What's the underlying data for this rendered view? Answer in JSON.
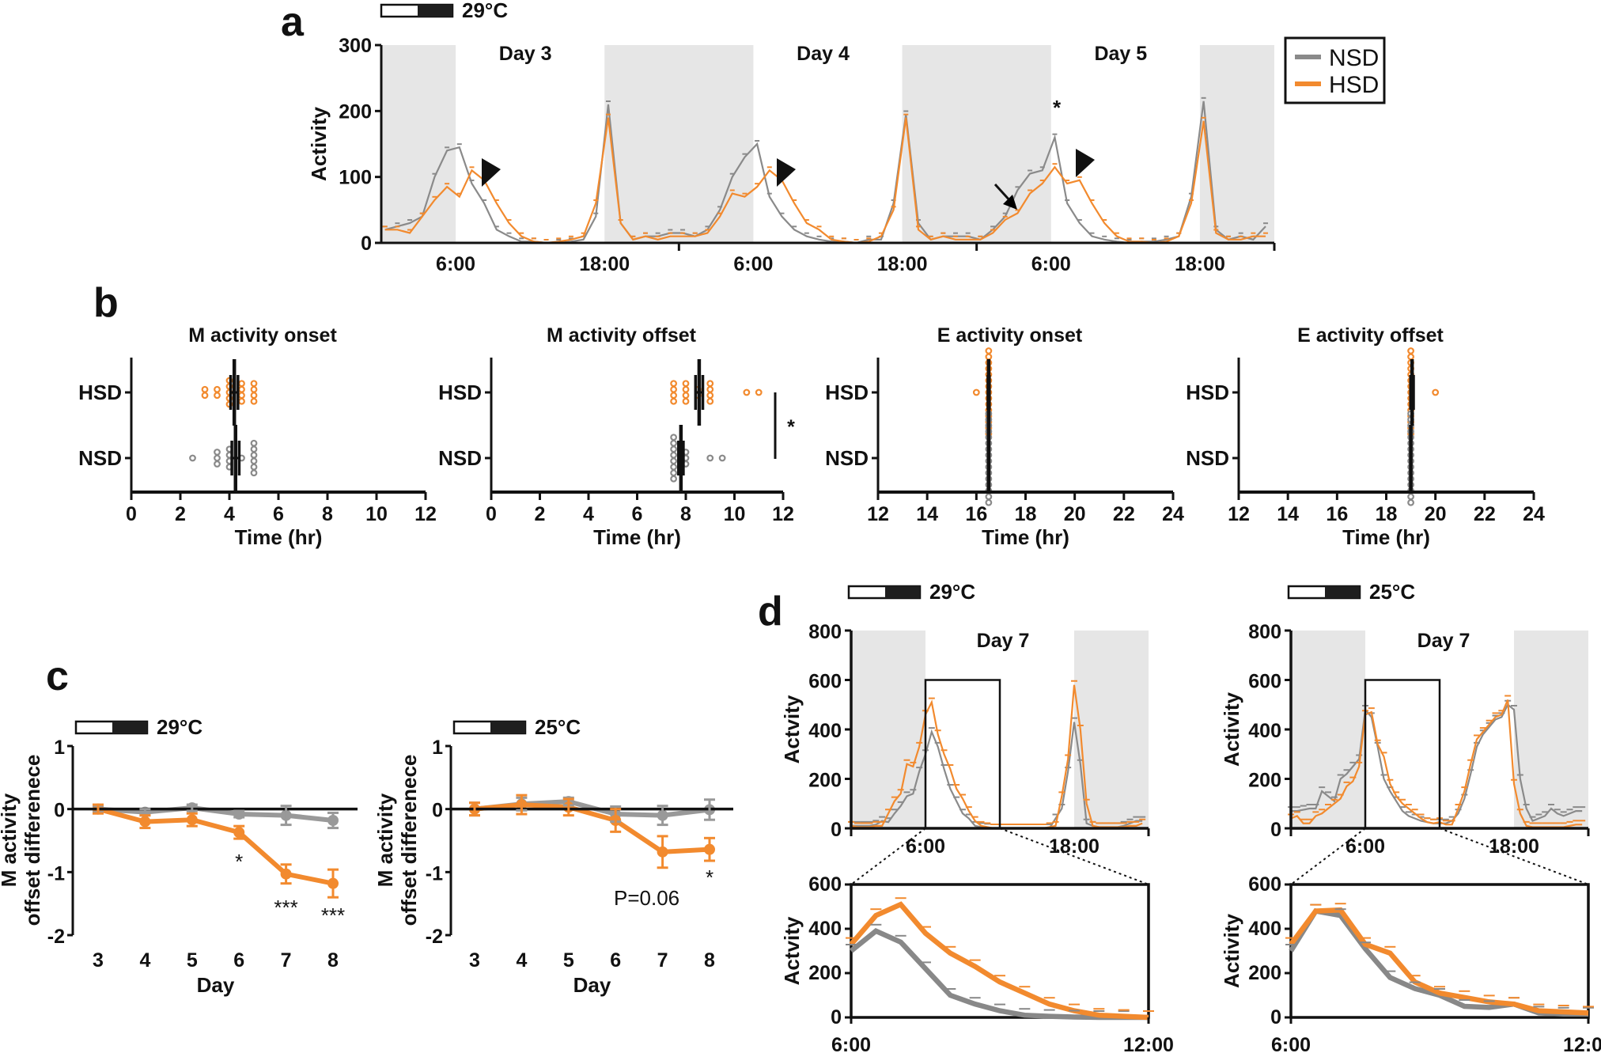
{
  "colors": {
    "NSD": "#8a8a8a",
    "HSD": "#f28a2e",
    "temp_hot": "#e4262b",
    "temp_normal": "#111111",
    "dark_phase_shading": "#e6e6e6"
  },
  "panel_labels": [
    "a",
    "b",
    "c",
    "d"
  ],
  "legend": [
    {
      "name": "NSD",
      "color": "#8a8a8a"
    },
    {
      "name": "HSD",
      "color": "#f28a2e"
    }
  ],
  "light_dark_bar": {
    "light": "white",
    "dark": "black"
  },
  "chart_data": [
    {
      "panel": "a",
      "type": "line",
      "temperature": "29°C",
      "ylabel": "Activity",
      "ylim": [
        0,
        300
      ],
      "yticks": [
        0,
        100,
        200,
        300
      ],
      "day_labels": [
        "Day 3",
        "Day 4",
        "Day 5"
      ],
      "xtick_labels": [
        "6:00",
        "18:00",
        "6:00",
        "18:00",
        "6:00",
        "18:00"
      ],
      "dark_phase": [
        "18:00",
        "6:00"
      ],
      "bin": "1 h",
      "annotations": {
        "significance": "*",
        "arrowheads": 3,
        "arrow": 1
      },
      "legend_placement": "top-right",
      "series": [
        {
          "name": "NSD",
          "values": [
            [
              20,
              25,
              30,
              40,
              100,
              140,
              145,
              90,
              60,
              20,
              10,
              2,
              2,
              0,
              0,
              2,
              5,
              40,
              210,
              30,
              5,
              10,
              10,
              15
            ],
            [
              15,
              10,
              20,
              50,
              100,
              130,
              150,
              70,
              40,
              20,
              10,
              5,
              2,
              2,
              0,
              5,
              5,
              60,
              195,
              30,
              5,
              10,
              10,
              10
            ],
            [
              5,
              20,
              40,
              80,
              105,
              110,
              160,
              60,
              30,
              10,
              5,
              2,
              0,
              2,
              2,
              5,
              10,
              70,
              215,
              20,
              5,
              10,
              5,
              25
            ]
          ]
        },
        {
          "name": "HSD",
          "values": [
            [
              20,
              20,
              15,
              40,
              65,
              85,
              70,
              110,
              95,
              60,
              30,
              10,
              2,
              0,
              2,
              5,
              10,
              60,
              190,
              30,
              5,
              10,
              5,
              10
            ],
            [
              10,
              10,
              15,
              40,
              75,
              70,
              85,
              110,
              95,
              60,
              30,
              20,
              5,
              2,
              0,
              2,
              10,
              50,
              190,
              20,
              5,
              10,
              5,
              5
            ],
            [
              5,
              15,
              35,
              45,
              75,
              90,
              115,
              90,
              95,
              60,
              30,
              10,
              2,
              2,
              0,
              2,
              10,
              60,
              185,
              15,
              5,
              5,
              10,
              10
            ]
          ]
        }
      ]
    },
    {
      "panel": "b",
      "type": "scatter",
      "title": "M  activity onset",
      "xlabel": "Time (hr)",
      "xlim": [
        0,
        12
      ],
      "xticks": [
        0,
        2,
        4,
        6,
        8,
        10,
        12
      ],
      "categories": [
        "HSD",
        "NSD"
      ],
      "groups": [
        {
          "name": "HSD",
          "values": [
            3,
            3,
            3.5,
            3.5,
            4,
            4,
            4,
            4,
            4,
            4.5,
            4.5,
            4.5,
            4.5,
            5,
            5,
            5,
            5
          ],
          "mean": 4.2,
          "sem": 0.15
        },
        {
          "name": "NSD",
          "values": [
            2.5,
            3.5,
            3.5,
            3.5,
            4,
            4,
            4,
            4,
            4.5,
            5,
            5,
            5,
            5,
            5,
            5
          ],
          "mean": 4.25,
          "sem": 0.15
        }
      ]
    },
    {
      "panel": "b",
      "type": "scatter",
      "title": "M activity offset",
      "xlabel": "Time (hr)",
      "xlim": [
        0,
        12
      ],
      "xticks": [
        0,
        2,
        4,
        6,
        8,
        10,
        12
      ],
      "categories": [
        "HSD",
        "NSD"
      ],
      "significance": "*",
      "groups": [
        {
          "name": "HSD",
          "values": [
            7.5,
            7.5,
            7.5,
            7.5,
            8,
            8,
            8,
            8,
            8.5,
            8.5,
            9,
            9,
            9,
            9,
            10.5,
            11
          ],
          "mean": 8.55,
          "sem": 0.15
        },
        {
          "name": "NSD",
          "values": [
            7.5,
            7.5,
            7.5,
            7.5,
            7.5,
            7.5,
            7.5,
            7.5,
            8,
            8,
            8,
            9,
            9.5
          ],
          "mean": 7.8,
          "sem": 0.1
        }
      ]
    },
    {
      "panel": "b",
      "type": "scatter",
      "title": "E activity onset",
      "xlabel": "Time (hr)",
      "xlim": [
        12,
        24
      ],
      "xticks": [
        12,
        14,
        16,
        18,
        20,
        22,
        24
      ],
      "categories": [
        "HSD",
        "NSD"
      ],
      "groups": [
        {
          "name": "HSD",
          "values": [
            16,
            16.5,
            16.5,
            16.5,
            16.5,
            16.5,
            16.5,
            16.5,
            16.5,
            16.5,
            16.5,
            16.5,
            16.5,
            16.5,
            16.5,
            16.5
          ],
          "mean": 16.5,
          "sem": 0.03
        },
        {
          "name": "NSD",
          "values": [
            16.5,
            16.5,
            16.5,
            16.5,
            16.5,
            16.5,
            16.5,
            16.5,
            16.5,
            16.5,
            16.5,
            16.5,
            16.5,
            16.5,
            16.5,
            16.5
          ],
          "mean": 16.5,
          "sem": 0.0
        }
      ]
    },
    {
      "panel": "b",
      "type": "scatter",
      "title": "E activity offset",
      "xlabel": "Time (hr)",
      "xlim": [
        12,
        24
      ],
      "xticks": [
        12,
        14,
        16,
        18,
        20,
        22,
        24
      ],
      "categories": [
        "HSD",
        "NSD"
      ],
      "groups": [
        {
          "name": "HSD",
          "values": [
            19,
            19,
            19,
            19,
            19,
            19,
            19,
            19,
            19,
            19,
            19,
            19,
            19,
            19,
            19,
            20
          ],
          "mean": 19.05,
          "sem": 0.06
        },
        {
          "name": "NSD",
          "values": [
            19,
            19,
            19,
            19,
            19,
            19,
            19,
            19,
            19,
            19,
            19,
            19,
            19,
            19,
            19,
            19
          ],
          "mean": 19.0,
          "sem": 0.0
        }
      ]
    },
    {
      "panel": "c",
      "type": "line",
      "temperature": "29°C",
      "ylabel": [
        "M activity",
        "offset differenece"
      ],
      "xlabel": "Day",
      "x": [
        3,
        4,
        5,
        6,
        7,
        8
      ],
      "ylim": [
        -2,
        1
      ],
      "yticks": [
        1,
        0,
        -1,
        -2
      ],
      "series": [
        {
          "name": "NSD",
          "values": [
            0,
            -0.05,
            0.02,
            -0.08,
            -0.1,
            -0.18
          ],
          "errors": [
            0.05,
            0.05,
            0.05,
            0.05,
            0.15,
            0.12
          ]
        },
        {
          "name": "HSD",
          "values": [
            0,
            -0.2,
            -0.17,
            -0.37,
            -1.03,
            -1.18
          ],
          "errors": [
            0.07,
            0.1,
            0.1,
            0.1,
            0.15,
            0.22
          ]
        }
      ],
      "annotations": [
        {
          "x": 6,
          "text": "*"
        },
        {
          "x": 7,
          "text": "***"
        },
        {
          "x": 8,
          "text": "***"
        }
      ]
    },
    {
      "panel": "c",
      "type": "line",
      "temperature": "25°C",
      "ylabel": [
        "M activity",
        "offset differenece"
      ],
      "xlabel": "Day",
      "x": [
        3,
        4,
        5,
        6,
        7,
        8
      ],
      "ylim": [
        -2,
        1
      ],
      "yticks": [
        1,
        0,
        -1,
        -2
      ],
      "series": [
        {
          "name": "NSD",
          "values": [
            0,
            0.08,
            0.12,
            -0.08,
            -0.1,
            -0.01
          ],
          "errors": [
            0.1,
            0.1,
            0.06,
            0.12,
            0.15,
            0.16
          ]
        },
        {
          "name": "HSD",
          "values": [
            0,
            0.07,
            0.03,
            -0.18,
            -0.68,
            -0.64
          ],
          "errors": [
            0.1,
            0.15,
            0.13,
            0.18,
            0.25,
            0.18
          ]
        }
      ],
      "annotations": [
        {
          "x": 7,
          "text": "P=0.06"
        },
        {
          "x": 8,
          "text": "*"
        }
      ]
    },
    {
      "panel": "d",
      "type": "line",
      "temperature": "29°C",
      "day_label": "Day 7",
      "ylabel": "Actvity",
      "ylim": [
        0,
        800
      ],
      "yticks": [
        0,
        200,
        400,
        600,
        800
      ],
      "xtick_labels": [
        "6:00",
        "18:00"
      ],
      "dark_phase": [
        "18:00",
        "6:00"
      ],
      "bin": "30 min",
      "zoom_window": [
        "6:00",
        "12:00"
      ],
      "zoom_ylim": [
        0,
        600
      ],
      "series": [
        {
          "name": "NSD",
          "values": [
            10,
            10,
            10,
            10,
            15,
            30,
            25,
            60,
            90,
            130,
            140,
            230,
            300,
            390,
            330,
            240,
            160,
            110,
            60,
            40,
            10,
            5,
            2,
            0,
            0,
            0,
            0,
            0,
            0,
            0,
            0,
            0,
            0,
            40,
            80,
            230,
            430,
            260,
            20,
            10,
            5,
            5,
            5,
            5,
            10,
            20,
            30,
            30
          ]
        },
        {
          "name": "HSD",
          "values": [
            10,
            5,
            5,
            5,
            10,
            10,
            60,
            110,
            140,
            260,
            250,
            330,
            460,
            510,
            380,
            300,
            240,
            160,
            120,
            70,
            30,
            10,
            5,
            0,
            0,
            0,
            0,
            0,
            0,
            0,
            0,
            0,
            5,
            10,
            130,
            280,
            580,
            400,
            100,
            10,
            5,
            5,
            5,
            5,
            5,
            10,
            10,
            20
          ]
        }
      ]
    },
    {
      "panel": "d",
      "type": "line",
      "ylabel": "Actvity",
      "xlim": [
        "6:00",
        "12:00"
      ],
      "xtick_labels": [
        "6:00",
        "12:00"
      ],
      "ylim": [
        0,
        600
      ],
      "yticks": [
        0,
        200,
        400,
        600
      ],
      "bin": "30 min",
      "series": [
        {
          "name": "NSD",
          "values": [
            300,
            390,
            340,
            220,
            100,
            60,
            30,
            10,
            5,
            2,
            0,
            0,
            0
          ]
        },
        {
          "name": "HSD",
          "values": [
            330,
            460,
            510,
            380,
            290,
            230,
            160,
            110,
            60,
            30,
            10,
            5,
            0
          ]
        }
      ]
    },
    {
      "panel": "d",
      "type": "line",
      "temperature": "25°C",
      "day_label": "Day 7",
      "ylabel": "Activity",
      "ylim": [
        0,
        800
      ],
      "yticks": [
        0,
        200,
        400,
        600,
        800
      ],
      "xtick_labels": [
        "6:00",
        "18:00"
      ],
      "dark_phase": [
        "18:00",
        "6:00"
      ],
      "bin": "30 min",
      "zoom_window": [
        "6:00",
        "12:00"
      ],
      "zoom_ylim": [
        0,
        600
      ],
      "series": [
        {
          "name": "NSD",
          "values": [
            70,
            70,
            75,
            80,
            80,
            150,
            130,
            110,
            200,
            220,
            250,
            280,
            480,
            450,
            330,
            200,
            150,
            110,
            70,
            50,
            40,
            30,
            25,
            20,
            20,
            20,
            30,
            60,
            120,
            220,
            330,
            380,
            410,
            440,
            450,
            500,
            480,
            200,
            80,
            30,
            40,
            50,
            80,
            60,
            50,
            60,
            70,
            70
          ]
        },
        {
          "name": "HSD",
          "values": [
            40,
            50,
            20,
            20,
            50,
            60,
            80,
            100,
            120,
            170,
            190,
            250,
            460,
            470,
            340,
            290,
            180,
            130,
            100,
            80,
            60,
            40,
            25,
            20,
            25,
            15,
            15,
            80,
            150,
            260,
            360,
            390,
            420,
            450,
            460,
            520,
            180,
            60,
            10,
            5,
            5,
            5,
            5,
            5,
            5,
            10,
            15,
            15
          ]
        }
      ]
    },
    {
      "panel": "d",
      "type": "line",
      "ylabel": "Activity",
      "xlim": [
        "6:00",
        "12:00"
      ],
      "xtick_labels": [
        "6:00",
        "12:00"
      ],
      "ylim": [
        0,
        600
      ],
      "yticks": [
        0,
        200,
        400,
        600
      ],
      "bin": "30 min",
      "series": [
        {
          "name": "NSD",
          "values": [
            300,
            480,
            460,
            310,
            180,
            130,
            100,
            50,
            45,
            60,
            20,
            15,
            15
          ]
        },
        {
          "name": "HSD",
          "values": [
            330,
            480,
            485,
            330,
            290,
            160,
            110,
            90,
            70,
            60,
            30,
            25,
            20
          ]
        }
      ]
    }
  ]
}
